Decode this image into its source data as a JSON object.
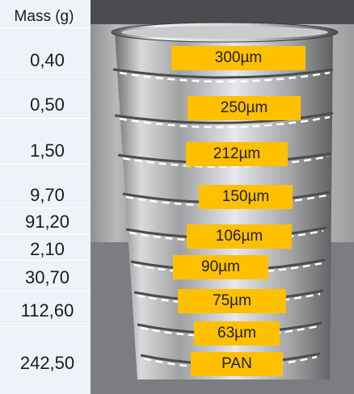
{
  "header": {
    "title": "Mass (g)"
  },
  "rows": [
    {
      "mass": "0,40",
      "sieve": "300µm"
    },
    {
      "mass": "0,50",
      "sieve": "250µm"
    },
    {
      "mass": "1,50",
      "sieve": "212µm"
    },
    {
      "mass": "9,70",
      "sieve": "150µm"
    },
    {
      "mass": "91,20",
      "sieve": "106µm"
    },
    {
      "mass": "2,10",
      "sieve": "90µm"
    },
    {
      "mass": "30,70",
      "sieve": "75µm"
    },
    {
      "mass": "112,60",
      "sieve": "63µm"
    },
    {
      "mass": "242,50",
      "sieve": "PAN"
    }
  ],
  "colors": {
    "tag": "#ffc000",
    "panel": "#eef3fa"
  }
}
